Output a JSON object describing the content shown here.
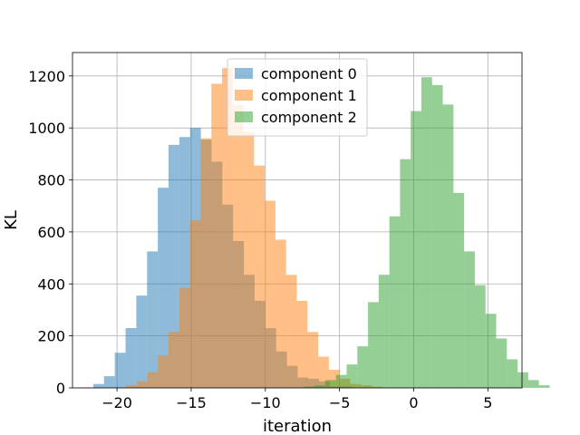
{
  "chart_data": {
    "type": "bar",
    "subtype": "histogram",
    "title": "",
    "xlabel": "iteration",
    "ylabel": "KL",
    "xlim": [
      -23,
      7.3
    ],
    "ylim": [
      0,
      1290
    ],
    "xticks": [
      -20,
      -15,
      -10,
      -5,
      0,
      5
    ],
    "xtick_labels": [
      "−20",
      "−15",
      "−10",
      "−5",
      "0",
      "5"
    ],
    "yticks": [
      0,
      200,
      400,
      600,
      800,
      1000,
      1200
    ],
    "ytick_labels": [
      "0",
      "200",
      "400",
      "600",
      "800",
      "1000",
      "1200"
    ],
    "grid": true,
    "legend_position": "upper center",
    "series": [
      {
        "name": "component 0",
        "color": "#1f77b4",
        "alpha": 0.5,
        "bin_start": -21.6,
        "bin_width": 0.725,
        "values": [
          15,
          45,
          135,
          230,
          355,
          525,
          770,
          935,
          965,
          1000,
          955,
          870,
          705,
          565,
          435,
          335,
          230,
          140,
          85,
          40,
          35,
          25,
          5,
          5
        ]
      },
      {
        "name": "component 1",
        "color": "#ff7f0e",
        "alpha": 0.5,
        "bin_start": -19.4,
        "bin_width": 0.72,
        "values": [
          10,
          25,
          60,
          125,
          215,
          385,
          645,
          960,
          1170,
          1230,
          1090,
          985,
          855,
          720,
          570,
          435,
          335,
          215,
          120,
          70,
          35,
          15,
          10,
          5
        ]
      },
      {
        "name": "component 2",
        "color": "#2ca02c",
        "alpha": 0.5,
        "bin_start": -7.4,
        "bin_width": 0.72,
        "values": [
          5,
          10,
          30,
          50,
          90,
          160,
          330,
          435,
          660,
          880,
          1065,
          1195,
          1165,
          1090,
          750,
          525,
          395,
          285,
          190,
          110,
          60,
          30,
          10
        ]
      }
    ]
  }
}
